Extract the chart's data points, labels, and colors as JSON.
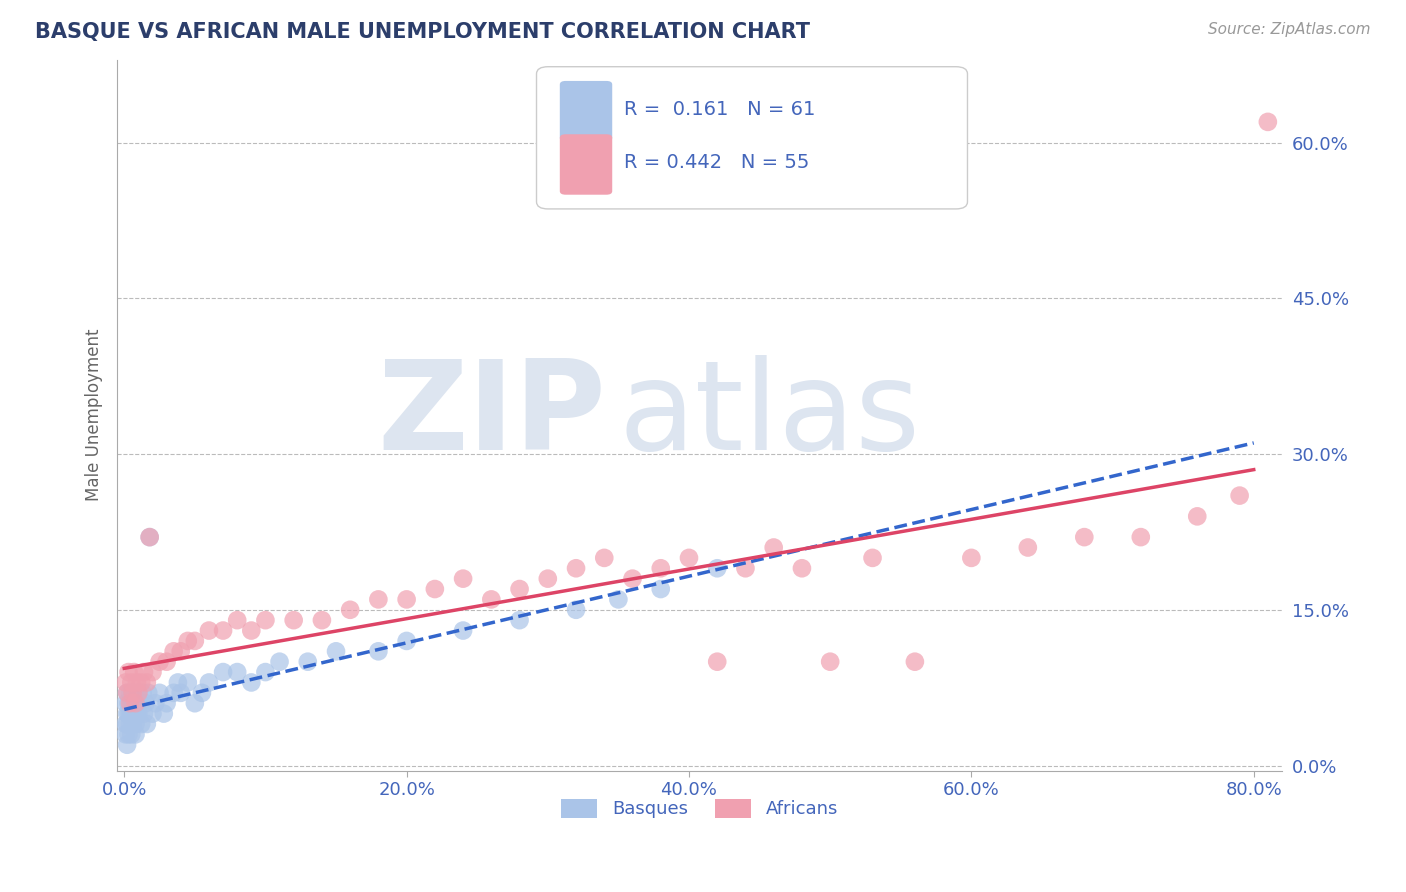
{
  "title": "BASQUE VS AFRICAN MALE UNEMPLOYMENT CORRELATION CHART",
  "source_text": "Source: ZipAtlas.com",
  "ylabel": "Male Unemployment",
  "xlabel": "",
  "xlim": [
    -0.005,
    0.82
  ],
  "ylim": [
    -0.005,
    0.68
  ],
  "yticks": [
    0.0,
    0.15,
    0.3,
    0.45,
    0.6
  ],
  "ytick_labels": [
    "0.0%",
    "15.0%",
    "30.0%",
    "45.0%",
    "60.0%"
  ],
  "xticks": [
    0.0,
    0.2,
    0.4,
    0.6,
    0.8
  ],
  "xtick_labels": [
    "0.0%",
    "20.0%",
    "40.0%",
    "60.0%",
    "80.0%"
  ],
  "grid_color": "#bbbbbb",
  "background_color": "#ffffff",
  "title_color": "#2c3e6b",
  "axis_color": "#4466bb",
  "watermark_zip": "ZIP",
  "watermark_atlas": "atlas",
  "watermark_color": "#dde5f0",
  "legend_R1": "0.161",
  "legend_N1": "61",
  "legend_R2": "0.442",
  "legend_N2": "55",
  "series1_color": "#aac4e8",
  "series2_color": "#f0a0b0",
  "series1_line_color": "#3366cc",
  "series2_line_color": "#dd4466",
  "basques_x": [
    0.001,
    0.001,
    0.001,
    0.002,
    0.002,
    0.002,
    0.002,
    0.003,
    0.003,
    0.003,
    0.004,
    0.004,
    0.004,
    0.005,
    0.005,
    0.005,
    0.006,
    0.006,
    0.007,
    0.007,
    0.008,
    0.008,
    0.008,
    0.009,
    0.01,
    0.01,
    0.011,
    0.012,
    0.013,
    0.014,
    0.015,
    0.016,
    0.017,
    0.018,
    0.02,
    0.022,
    0.025,
    0.028,
    0.03,
    0.035,
    0.038,
    0.04,
    0.045,
    0.05,
    0.055,
    0.06,
    0.07,
    0.08,
    0.09,
    0.1,
    0.11,
    0.13,
    0.15,
    0.18,
    0.2,
    0.24,
    0.28,
    0.32,
    0.35,
    0.38,
    0.42
  ],
  "basques_y": [
    0.06,
    0.04,
    0.03,
    0.05,
    0.07,
    0.04,
    0.02,
    0.05,
    0.06,
    0.03,
    0.05,
    0.04,
    0.07,
    0.06,
    0.03,
    0.05,
    0.04,
    0.07,
    0.05,
    0.06,
    0.04,
    0.06,
    0.03,
    0.05,
    0.07,
    0.05,
    0.06,
    0.04,
    0.07,
    0.05,
    0.06,
    0.04,
    0.07,
    0.22,
    0.05,
    0.06,
    0.07,
    0.05,
    0.06,
    0.07,
    0.08,
    0.07,
    0.08,
    0.06,
    0.07,
    0.08,
    0.09,
    0.09,
    0.08,
    0.09,
    0.1,
    0.1,
    0.11,
    0.11,
    0.12,
    0.13,
    0.14,
    0.15,
    0.16,
    0.17,
    0.19
  ],
  "africans_x": [
    0.001,
    0.002,
    0.003,
    0.004,
    0.005,
    0.006,
    0.007,
    0.008,
    0.009,
    0.01,
    0.012,
    0.014,
    0.016,
    0.018,
    0.02,
    0.025,
    0.03,
    0.035,
    0.04,
    0.045,
    0.05,
    0.06,
    0.07,
    0.08,
    0.09,
    0.1,
    0.12,
    0.14,
    0.16,
    0.18,
    0.2,
    0.22,
    0.24,
    0.26,
    0.28,
    0.3,
    0.32,
    0.34,
    0.36,
    0.38,
    0.4,
    0.42,
    0.44,
    0.46,
    0.48,
    0.5,
    0.53,
    0.56,
    0.6,
    0.64,
    0.68,
    0.72,
    0.76,
    0.79,
    0.81
  ],
  "africans_y": [
    0.08,
    0.07,
    0.09,
    0.06,
    0.08,
    0.07,
    0.09,
    0.06,
    0.08,
    0.07,
    0.08,
    0.09,
    0.08,
    0.22,
    0.09,
    0.1,
    0.1,
    0.11,
    0.11,
    0.12,
    0.12,
    0.13,
    0.13,
    0.14,
    0.13,
    0.14,
    0.14,
    0.14,
    0.15,
    0.16,
    0.16,
    0.17,
    0.18,
    0.16,
    0.17,
    0.18,
    0.19,
    0.2,
    0.18,
    0.19,
    0.2,
    0.1,
    0.19,
    0.21,
    0.19,
    0.1,
    0.2,
    0.1,
    0.2,
    0.21,
    0.22,
    0.22,
    0.24,
    0.26,
    0.62
  ]
}
